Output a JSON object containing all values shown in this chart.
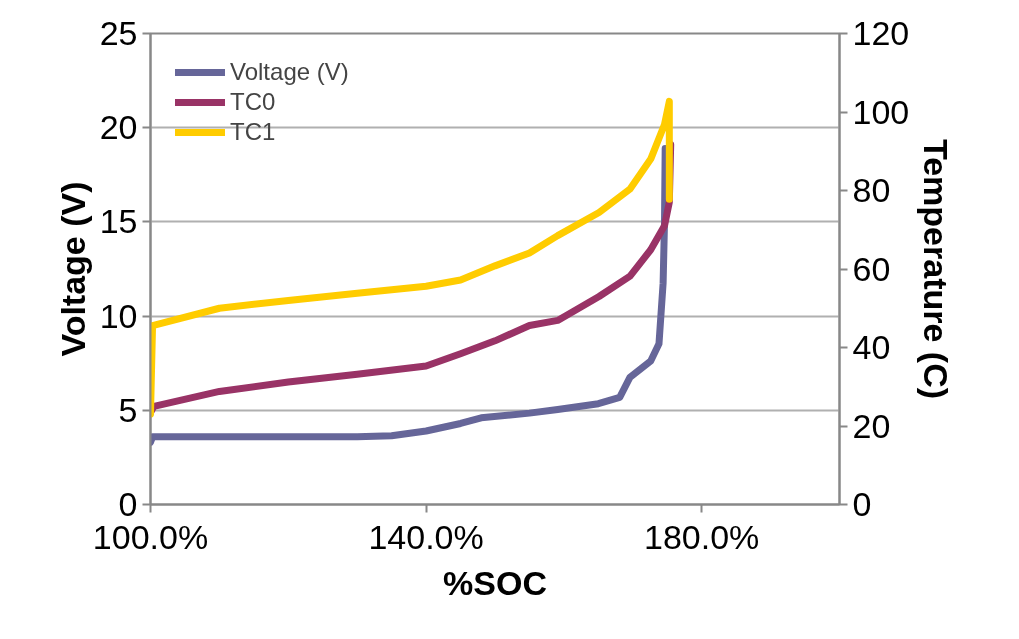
{
  "chart_data": {
    "type": "line",
    "xlabel": "%SOC",
    "ylabel": "Voltage (V)",
    "y2label": "Temperature (C)",
    "xlim": [
      100,
      200
    ],
    "xticks": [
      {
        "value": 100,
        "label": "100.0%"
      },
      {
        "value": 140,
        "label": "140.0%"
      },
      {
        "value": 180,
        "label": "180.0%"
      }
    ],
    "ylim": [
      0,
      25
    ],
    "yticks": [
      0,
      5,
      10,
      15,
      20,
      25
    ],
    "y2lim": [
      0,
      120
    ],
    "y2ticks": [
      0,
      20,
      40,
      60,
      80,
      100,
      120
    ],
    "grid": "y",
    "legend": "top left",
    "line_style": "solid",
    "marker": "none",
    "series": [
      {
        "name": "Voltage (V)",
        "color": "#666699",
        "x": [
          100,
          100.3,
          110,
          120,
          130,
          135,
          140,
          145,
          148,
          155,
          159.1,
          165,
          168.1,
          169.6,
          172.6,
          173.8,
          174.4,
          174.6,
          174.7
        ],
        "values": [
          3.3,
          3.6,
          3.6,
          3.6,
          3.6,
          3.65,
          3.9,
          4.3,
          4.6,
          4.85,
          5.04,
          5.35,
          5.69,
          6.76,
          7.62,
          8.53,
          11.75,
          14.97,
          18.9
        ]
      },
      {
        "name": "TC0",
        "axis": "y2",
        "color": "#993366",
        "x": [
          100,
          100.5,
          110,
          120,
          130,
          140,
          145,
          150,
          155,
          159.1,
          165.1,
          169.6,
          172.6,
          174.6,
          175.3,
          175.5
        ],
        "values": [
          23.4,
          25,
          28.8,
          31.2,
          33.2,
          35.3,
          38.4,
          41.7,
          45.6,
          46.9,
          53,
          58.2,
          64.9,
          71,
          77,
          91.7
        ]
      },
      {
        "name": "TC1",
        "axis": "y2",
        "color": "#ffcc00",
        "x": [
          100,
          100.3,
          110,
          120,
          130,
          140,
          145,
          150,
          155,
          159.1,
          165.1,
          169.6,
          172.6,
          174.6,
          175.3,
          175.3
        ],
        "values": [
          23,
          45.6,
          50,
          52,
          53.8,
          55.6,
          57.2,
          60.8,
          64.1,
          68.5,
          74.4,
          80.4,
          88,
          96.8,
          102.7,
          77.8
        ]
      }
    ]
  }
}
